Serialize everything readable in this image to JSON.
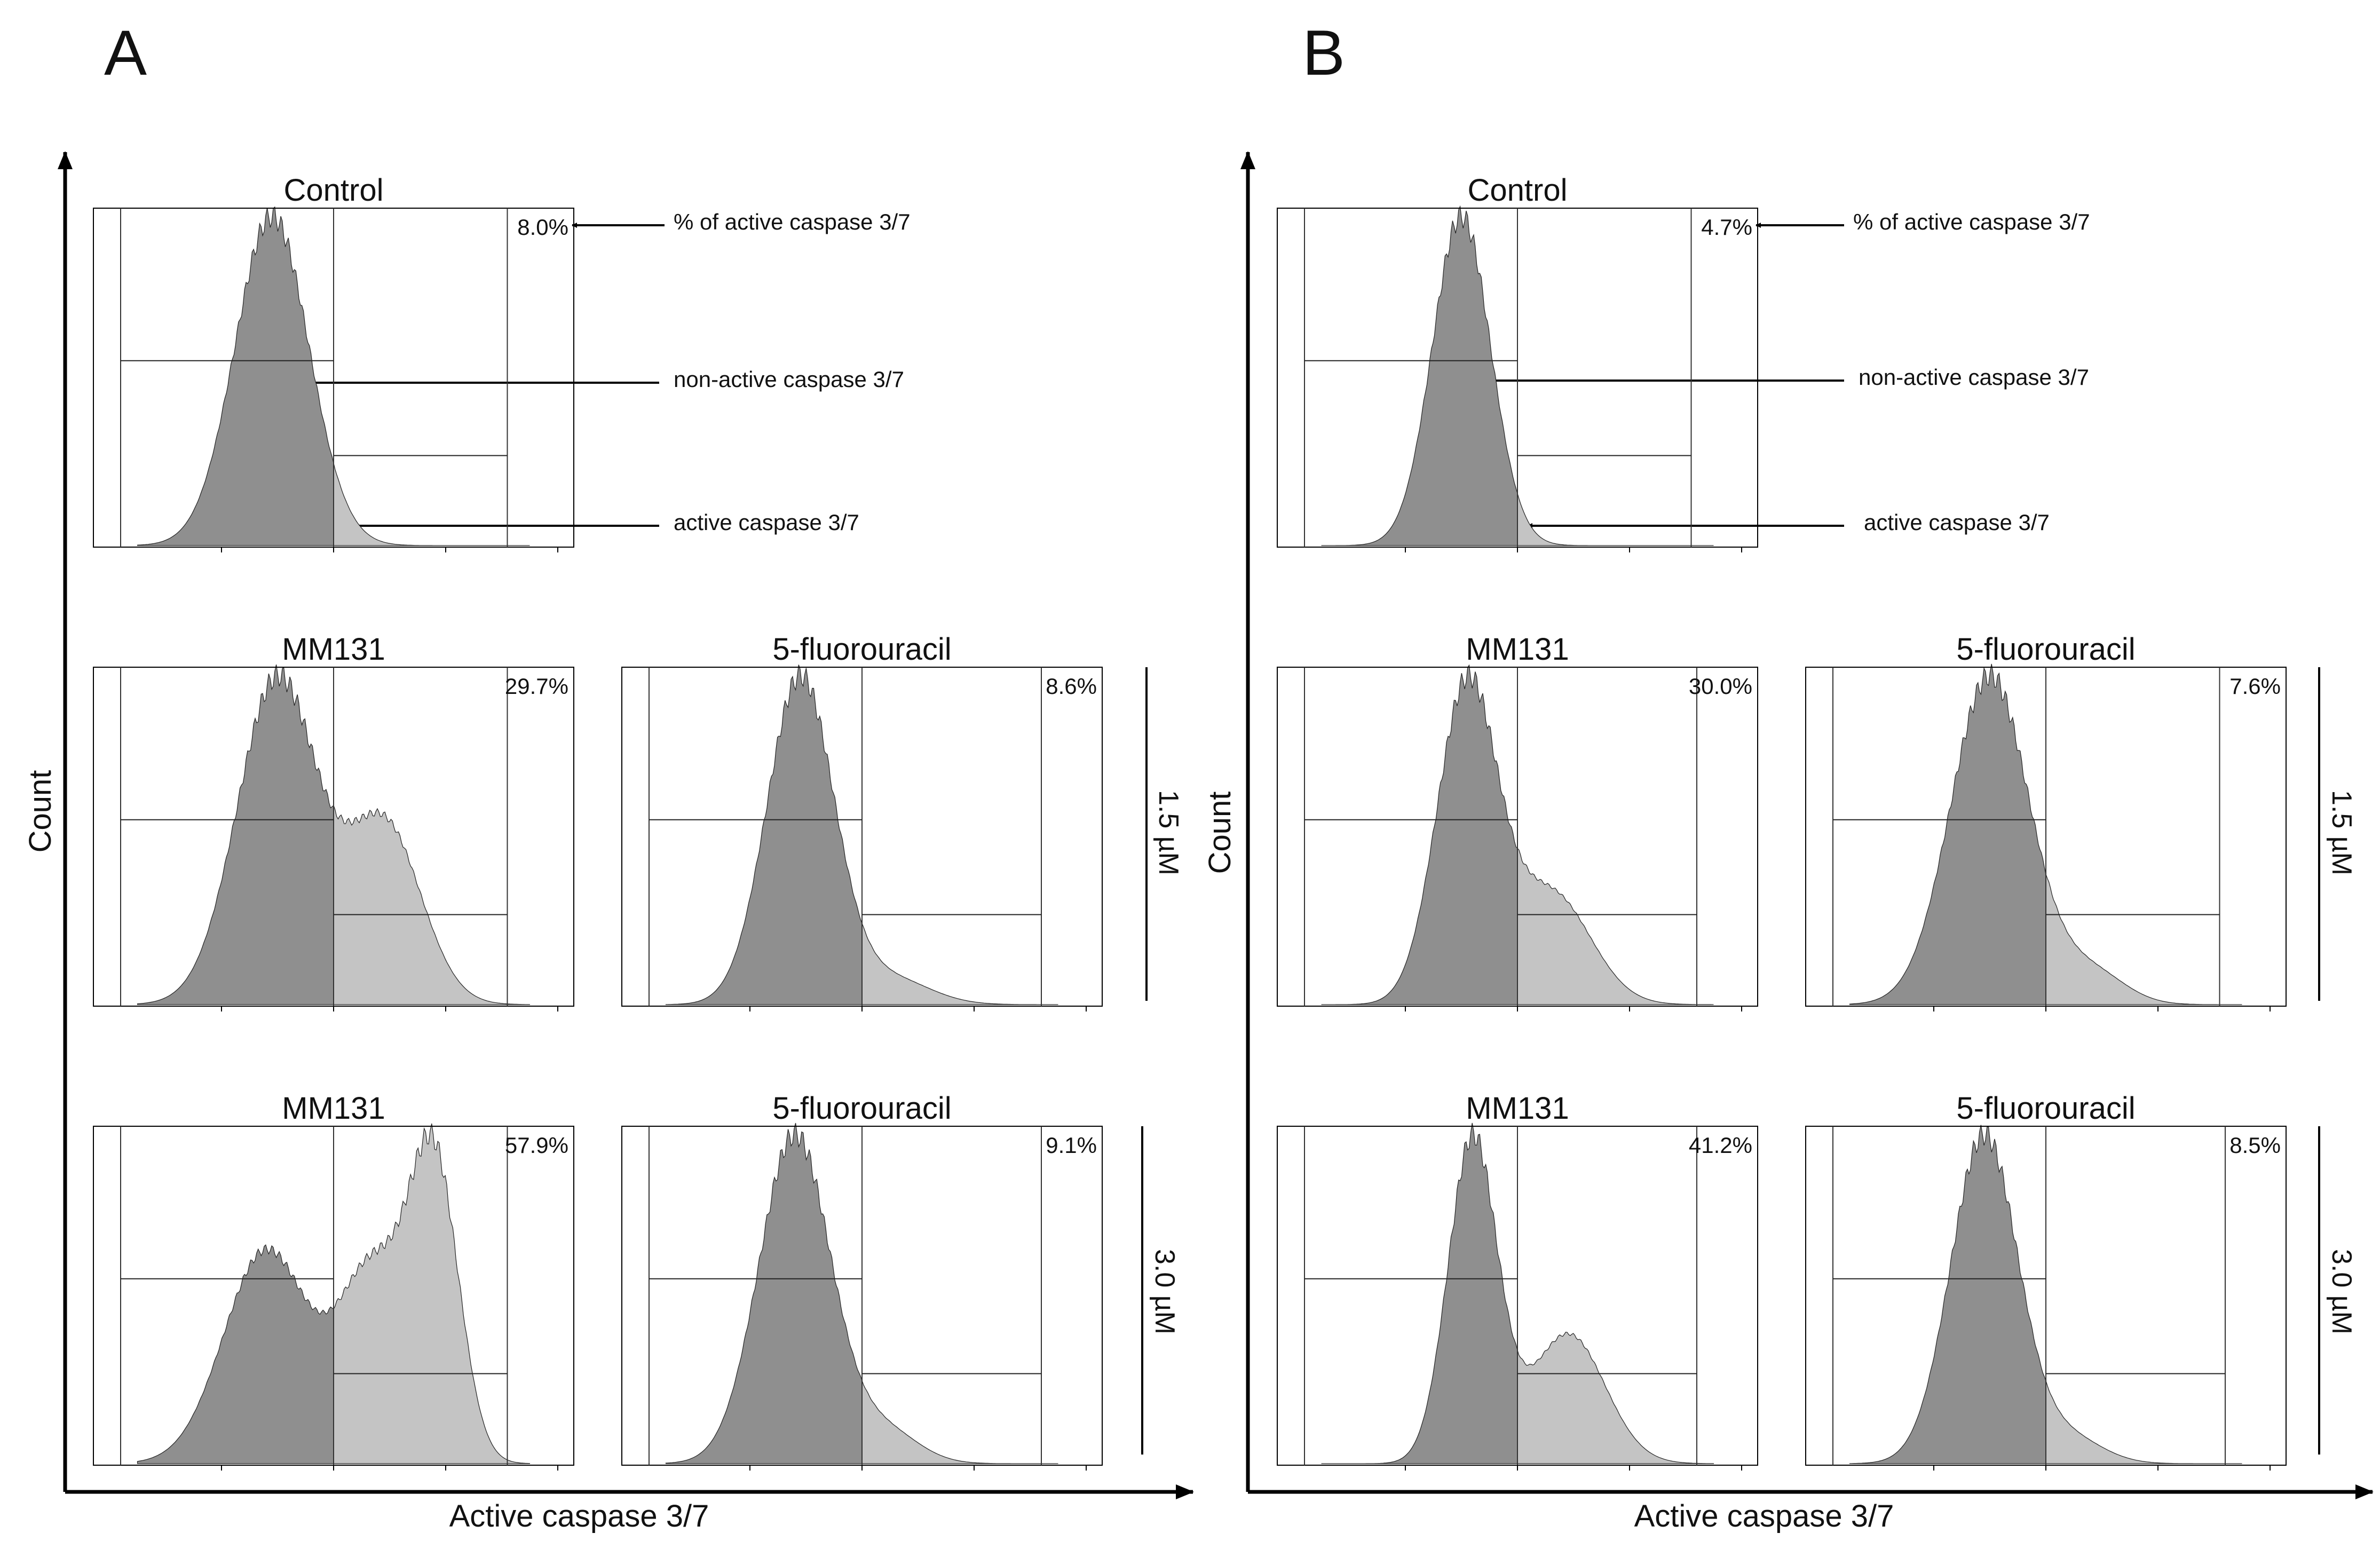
{
  "chart_data": {
    "type": "histogram",
    "description_note": "Flow cytometry histograms of active caspase 3/7 (log scale 10^1-10^5) vs Count",
    "axes": {
      "xlabel": "Active caspase 3/7",
      "ylabel": "Count",
      "xscale": "log",
      "xlim": [
        1,
        5
      ]
    },
    "panels": [
      {
        "label": "A",
        "xlabel": "Active caspase 3/7",
        "ylabel": "Count",
        "annotations": [
          {
            "text": "% of active caspase 3/7"
          },
          {
            "text": "non-active caspase 3/7"
          },
          {
            "text": "active caspase 3/7"
          }
        ],
        "concentration_labels": [
          "1.5 µM",
          "3.0 µM"
        ],
        "plots": [
          {
            "title": "Control",
            "percent": "8.0%",
            "gate_split": 3.0,
            "gate_end": 4.55,
            "peaks": [
              {
                "mu": 2.45,
                "sd": 0.33,
                "h": 1.0
              }
            ]
          },
          {
            "title": "MM131",
            "percent": "29.7%",
            "gate_split": 3.0,
            "gate_end": 4.55,
            "peaks": [
              {
                "mu": 2.5,
                "sd": 0.36,
                "h": 1.0
              },
              {
                "mu": 3.45,
                "sd": 0.33,
                "h": 0.55
              }
            ]
          },
          {
            "title": "5-fluorouracil",
            "percent": "8.6%",
            "gate_split": 3.0,
            "gate_end": 4.6,
            "peaks": [
              {
                "mu": 2.45,
                "sd": 0.3,
                "h": 1.0
              },
              {
                "mu": 3.25,
                "sd": 0.35,
                "h": 0.08
              }
            ]
          },
          {
            "title": "MM131",
            "percent": "57.9%",
            "gate_split": 3.0,
            "gate_end": 4.55,
            "peaks": [
              {
                "mu": 2.4,
                "sd": 0.38,
                "h": 0.7
              },
              {
                "mu": 3.35,
                "sd": 0.3,
                "h": 0.62
              },
              {
                "mu": 3.9,
                "sd": 0.22,
                "h": 0.95
              }
            ]
          },
          {
            "title": "5-fluorouracil",
            "percent": "9.1%",
            "gate_split": 3.0,
            "gate_end": 4.6,
            "peaks": [
              {
                "mu": 2.4,
                "sd": 0.32,
                "h": 1.0
              },
              {
                "mu": 3.2,
                "sd": 0.3,
                "h": 0.1
              }
            ]
          }
        ]
      },
      {
        "label": "B",
        "xlabel": "Active caspase 3/7",
        "ylabel": "Count",
        "annotations": [
          {
            "text": "% of active caspase 3/7"
          },
          {
            "text": "non-active caspase 3/7"
          },
          {
            "text": "active caspase 3/7"
          }
        ],
        "concentration_labels": [
          "1.5 µM",
          "3.0 µM"
        ],
        "plots": [
          {
            "title": "Control",
            "percent": "4.7%",
            "gate_split": 3.0,
            "gate_end": 4.55,
            "peaks": [
              {
                "mu": 2.5,
                "sd": 0.26,
                "h": 1.0
              }
            ]
          },
          {
            "title": "MM131",
            "percent": "30.0%",
            "gate_split": 3.0,
            "gate_end": 4.6,
            "peaks": [
              {
                "mu": 2.55,
                "sd": 0.27,
                "h": 1.0
              },
              {
                "mu": 3.3,
                "sd": 0.35,
                "h": 0.35
              }
            ]
          },
          {
            "title": "5-fluorouracil",
            "percent": "7.6%",
            "gate_split": 3.0,
            "gate_end": 4.55,
            "peaks": [
              {
                "mu": 2.5,
                "sd": 0.35,
                "h": 1.0
              },
              {
                "mu": 3.4,
                "sd": 0.3,
                "h": 0.1
              }
            ]
          },
          {
            "title": "MM131",
            "percent": "41.2%",
            "gate_split": 3.0,
            "gate_end": 4.6,
            "peaks": [
              {
                "mu": 2.6,
                "sd": 0.22,
                "h": 1.0
              },
              {
                "mu": 3.45,
                "sd": 0.33,
                "h": 0.4
              }
            ]
          },
          {
            "title": "5-fluorouracil",
            "percent": "8.5%",
            "gate_split": 3.0,
            "gate_end": 4.6,
            "peaks": [
              {
                "mu": 2.45,
                "sd": 0.3,
                "h": 1.0
              },
              {
                "mu": 3.2,
                "sd": 0.3,
                "h": 0.08
              }
            ]
          }
        ]
      }
    ]
  },
  "colors": {
    "non_active_fill": "#8f8f8f",
    "active_fill": "#c4c4c4",
    "outline": "#222222"
  }
}
